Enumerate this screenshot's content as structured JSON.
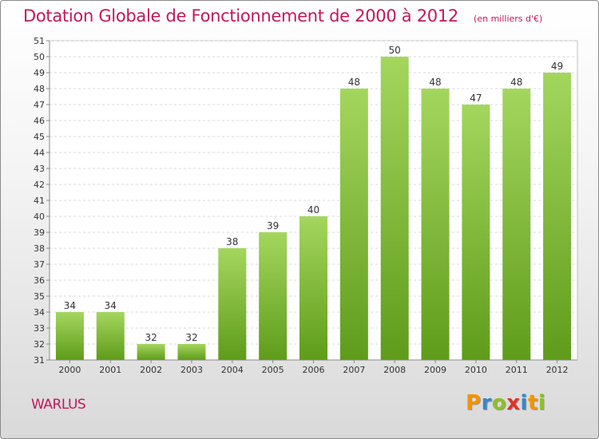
{
  "chart_data": {
    "type": "bar",
    "title": "Dotation Globale de Fonctionnement de 2000 à 2012",
    "unit_note": "(en milliers d'€)",
    "categories": [
      "2000",
      "2001",
      "2002",
      "2003",
      "2004",
      "2005",
      "2006",
      "2007",
      "2008",
      "2009",
      "2010",
      "2011",
      "2012"
    ],
    "values": [
      34,
      34,
      32,
      32,
      38,
      39,
      40,
      48,
      50,
      48,
      47,
      48,
      49
    ],
    "ylim": [
      31,
      51
    ],
    "ytick_step": 1,
    "grid": "horizontal dashed",
    "colors": {
      "title": "#c2185b",
      "bar_top": "#a4d65e",
      "bar_bottom": "#5f9c1a",
      "grid": "#d8d8d8",
      "axis": "#888888"
    }
  },
  "footer": {
    "commune": "WARLUS",
    "logo_letters": [
      {
        "ch": "P",
        "color": "#f29400"
      },
      {
        "ch": "r",
        "color": "#3a86c8"
      },
      {
        "ch": "o",
        "color": "#8dbf28"
      },
      {
        "ch": "x",
        "color": "#e0322b"
      },
      {
        "ch": "i",
        "color": "#3a86c8"
      },
      {
        "ch": "t",
        "color": "#f29400"
      },
      {
        "ch": "i",
        "color": "#8dbf28"
      }
    ]
  }
}
